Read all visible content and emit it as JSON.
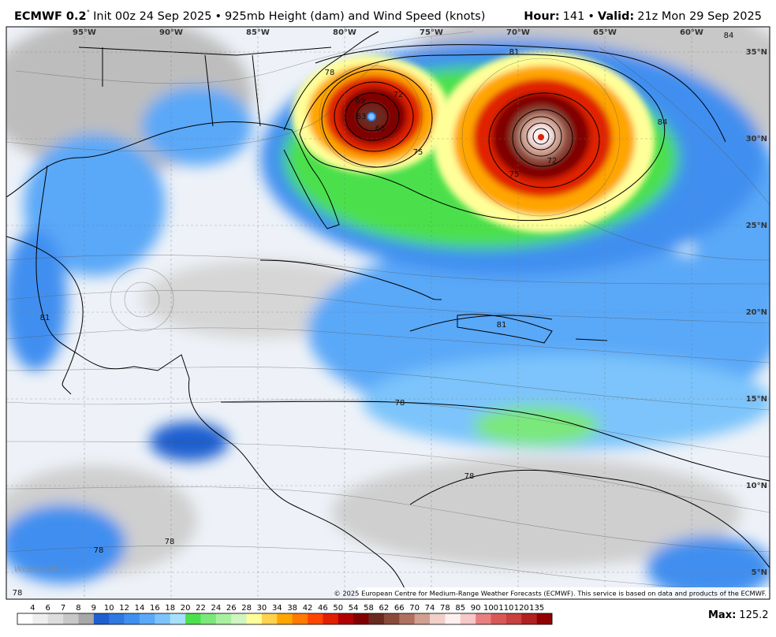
{
  "header": {
    "model": "ECMWF 0.2",
    "model_degree": "°",
    "init": "Init 00z 24 Sep 2025",
    "separator": "•",
    "description": "925mb Height (dam) and Wind Speed (knots)",
    "hour_label": "Hour:",
    "hour": "141",
    "valid_label": "Valid:",
    "valid": "21z Mon 29 Sep 2025"
  },
  "map": {
    "longitude_labels": [
      "95°W",
      "90°W",
      "85°W",
      "80°W",
      "75°W",
      "70°W",
      "65°W",
      "60°W"
    ],
    "latitude_labels": [
      "35°N",
      "30°N",
      "25°N",
      "20°N",
      "15°N",
      "10°N",
      "5°N"
    ],
    "contour_labels": [
      "78",
      "81",
      "84",
      "84",
      "72",
      "69",
      "66",
      "63",
      "75",
      "75",
      "72",
      "81",
      "81",
      "78",
      "78",
      "78",
      "78",
      "78"
    ],
    "watermark": "WeatherBELL",
    "copyright": "© 2025 European Centre for Medium-Range Weather Forecasts (ECMWF). This service is based on data and products of the ECMWF."
  },
  "colorbar": {
    "labels": [
      4,
      6,
      7,
      8,
      9,
      10,
      12,
      14,
      16,
      18,
      20,
      22,
      24,
      26,
      28,
      30,
      34,
      38,
      42,
      46,
      50,
      54,
      58,
      62,
      66,
      70,
      74,
      78,
      85,
      90,
      100,
      110,
      120,
      135
    ],
    "colors": [
      "#ffffff",
      "#eeeeee",
      "#dddddd",
      "#c8c8c8",
      "#a8a8a8",
      "#1e5fd0",
      "#2f78e0",
      "#3f8ff0",
      "#5aa8f8",
      "#7cc4fb",
      "#a6e0fd",
      "#4ce04c",
      "#7ae87a",
      "#a8f0a0",
      "#d0f5c0",
      "#ffff99",
      "#ffd24d",
      "#ffa500",
      "#ff7a00",
      "#ff4500",
      "#e02000",
      "#b00000",
      "#800000",
      "#6a2a20",
      "#8a4a3a",
      "#b07060",
      "#d0a090",
      "#f0d0c8",
      "#fff0f0",
      "#f6c8c8",
      "#e88080",
      "#d85858",
      "#c84040",
      "#b02020",
      "#900000"
    ]
  },
  "footer": {
    "max_label": "Max:",
    "max_value": 125.2
  }
}
